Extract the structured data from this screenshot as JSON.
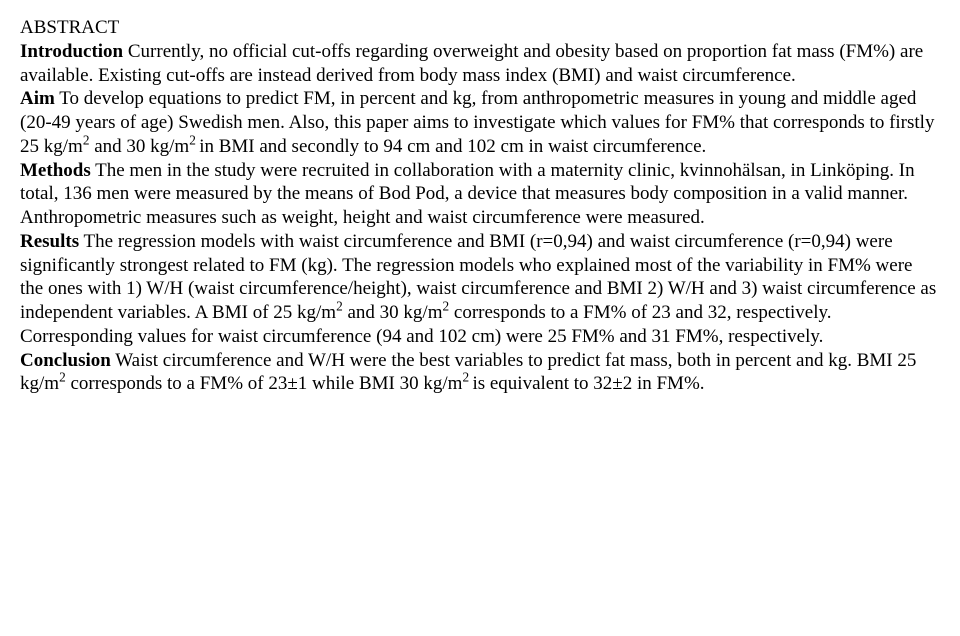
{
  "abstract": {
    "heading": "ABSTRACT",
    "intro_label": "Introduction",
    "intro_text": " Currently, no official cut-offs regarding overweight and obesity based on proportion fat mass (FM%) are available. Existing cut-offs are instead derived from body mass index (BMI) and waist circumference.",
    "aim_label": "Aim",
    "aim_text_a": " To develop equations to predict FM, in percent and kg, from anthropometric measures in young and middle aged (20-49 years of age) Swedish men. Also, this paper aims to investigate which values for FM% that corresponds to firstly 25 kg/m",
    "aim_sup1": "2",
    "aim_text_b": " and 30 kg/m",
    "aim_sup2": "2 ",
    "aim_text_c": "in BMI and secondly to 94 cm and 102 cm in waist circumference.",
    "methods_label": "Methods",
    "methods_text": " The men in the study were recruited in collaboration with a maternity clinic, kvinnohälsan, in Linköping. In total, 136 men were measured by the means of Bod Pod, a device that measures body composition in a valid manner. Anthropometric measures such as weight, height and waist circumference were measured.",
    "results_label": "Results",
    "results_text_a": " The regression models with waist circumference and BMI (r=0,94) and waist circumference (r=0,94) were significantly strongest related to FM (kg). The regression models who explained most of the variability in FM% were the ones with 1) W/H (waist circumference/height), waist circumference and BMI 2) W/H and 3) waist circumference as independent variables. A BMI of 25 kg/m",
    "results_sup1": "2",
    "results_text_b": " and 30 kg/m",
    "results_sup2": "2",
    "results_text_c": " corresponds to a FM% of 23 and 32, respectively. Corresponding values for waist circumference (94 and 102 cm) were 25 FM% and 31 FM%, respectively.",
    "conclusion_label": "Conclusion",
    "conclusion_text_a": " Waist circumference and W/H were the best variables to predict fat mass, both in percent and kg. BMI 25 kg/m",
    "conclusion_sup1": "2",
    "conclusion_text_b": " corresponds to a FM% of 23±1 while BMI 30 kg/m",
    "conclusion_sup2": "2 ",
    "conclusion_text_c": "is equivalent to 32±2 in FM%."
  }
}
